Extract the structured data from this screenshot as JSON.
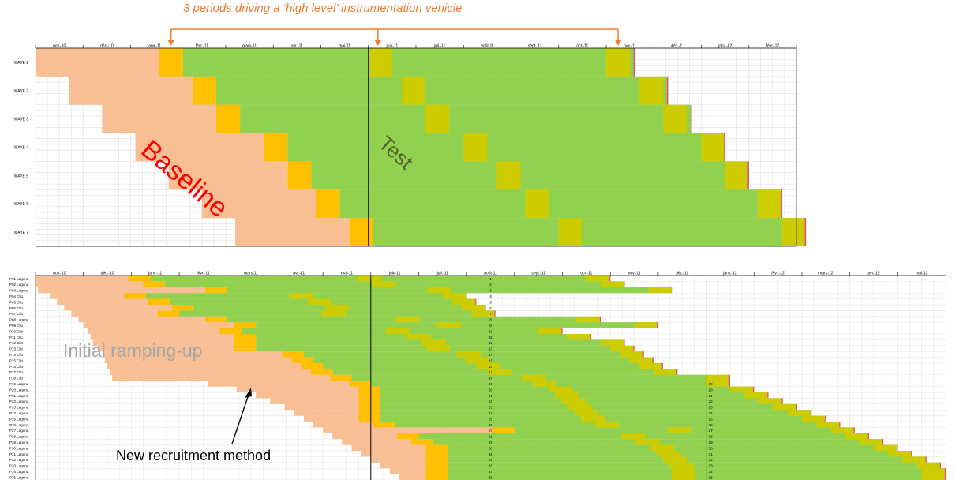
{
  "colors": {
    "baseline": "#f7bf93",
    "test": "#92d050",
    "instrumented_baseline": "#ffc000",
    "instrumented_test": "#cccc00",
    "end_marker": "#e84c7d",
    "annotation": "#ed7d31",
    "baseline_label": "#ff0000",
    "test_label": "#4f6228",
    "ramping_label": "#a6a6a6",
    "grid": "#d9d9d9"
  },
  "annotation": {
    "title": "3 periods driving a ‘high level’ instrumentation vehicle",
    "baseline": "Baseline",
    "test": "Test",
    "ramping": "Initial ramping-up",
    "recruitment": "New recruitment method"
  },
  "chart_data": [
    {
      "type": "table",
      "months": [
        "nov.-10",
        "déc.-10",
        "janv.-11",
        "févr.-11",
        "mars-11",
        "avr.-11",
        "mai-11",
        "juin-11",
        "juil.-11",
        "août-11",
        "sept.-11",
        "oct.-11",
        "nov.-11",
        "déc.-11",
        "janv.-12",
        "févr.-12"
      ],
      "rows": [
        "WAVE 1",
        "WAVE 2",
        "WAVE 3",
        "WAVE 4",
        "WAVE 5",
        "WAVE 6",
        "WAVE 7"
      ],
      "phase_boundary_month": "juin-11",
      "waves": [
        {
          "baseline_start": 0.0,
          "instr1": 2.6,
          "instr2": 7.0,
          "instr3": 12.0,
          "end": 12.6
        },
        {
          "baseline_start": 0.7,
          "instr1": 3.3,
          "instr2": 7.7,
          "instr3": 12.7,
          "end": 13.3
        },
        {
          "baseline_start": 1.4,
          "instr1": 3.8,
          "instr2": 8.2,
          "instr3": 13.2,
          "end": 13.8
        },
        {
          "baseline_start": 2.1,
          "instr1": 4.8,
          "instr2": 9.0,
          "instr3": 14.0,
          "end": 14.5
        },
        {
          "baseline_start": 2.8,
          "instr1": 5.3,
          "instr2": 9.7,
          "instr3": 14.5,
          "end": 15.0
        },
        {
          "baseline_start": 3.5,
          "instr1": 5.9,
          "instr2": 10.3,
          "instr3": 15.2,
          "end": 15.7
        },
        {
          "baseline_start": 4.2,
          "instr1": 6.6,
          "instr2": 11.0,
          "instr3": 15.7,
          "end": 16.2
        }
      ]
    },
    {
      "type": "table",
      "months": [
        "nov.-10",
        "déc.-10",
        "janv.-11",
        "févr.-11",
        "mars-11",
        "avr.-11",
        "mai-11",
        "juin-11",
        "juil.-11",
        "août-11",
        "sept.-11",
        "oct.-11",
        "nov.-11",
        "déc.-11",
        "janv.-12",
        "févr.-12",
        "mars-12",
        "avr.-12",
        "mai-12"
      ],
      "rows": [
        "P01 Laguna",
        "P02 Laguna",
        "P03 Laguna",
        "P04 Clio",
        "P05 Clio",
        "P06 Clio",
        "P07 Clio",
        "P08 Laguna",
        "P09 Clio",
        "P10 Clio",
        "P11 Clio",
        "P12 Clio",
        "P13 Clio",
        "P14 Clio",
        "P15 Clio",
        "P16 Clio",
        "P17 Clio",
        "P18 Clio",
        "P19 Laguna",
        "P20 Laguna",
        "P21 Laguna",
        "P22 Laguna",
        "P23 Laguna",
        "P24 Laguna",
        "P25 Laguna",
        "P26 Laguna",
        "P27 Laguna",
        "P28 Laguna",
        "P29 Laguna",
        "P30 Laguna",
        "P31 Laguna",
        "P32 Laguna",
        "P33 Laguna",
        "P34 Laguna",
        "P35 Laguna"
      ],
      "row_numbers": [
        "1",
        "2",
        "3",
        "4",
        "5",
        "6",
        "7",
        "8",
        "9",
        "10",
        "11",
        "12",
        "13",
        "14",
        "15",
        "16",
        "17",
        "18",
        "19",
        "20",
        "21",
        "22",
        "23",
        "24",
        "25",
        "26",
        "27",
        "28",
        "29",
        "30",
        "31",
        "32",
        "33",
        "34",
        "35"
      ],
      "secondary_row_numbers": [
        "19",
        "20",
        "21",
        "22",
        "23",
        "24",
        "25",
        "26",
        "27",
        "28",
        "29",
        "30",
        "31",
        "32",
        "33",
        "34",
        "35"
      ],
      "phase_boundary_months": [
        "juin-11",
        "janv.-12"
      ]
    }
  ]
}
